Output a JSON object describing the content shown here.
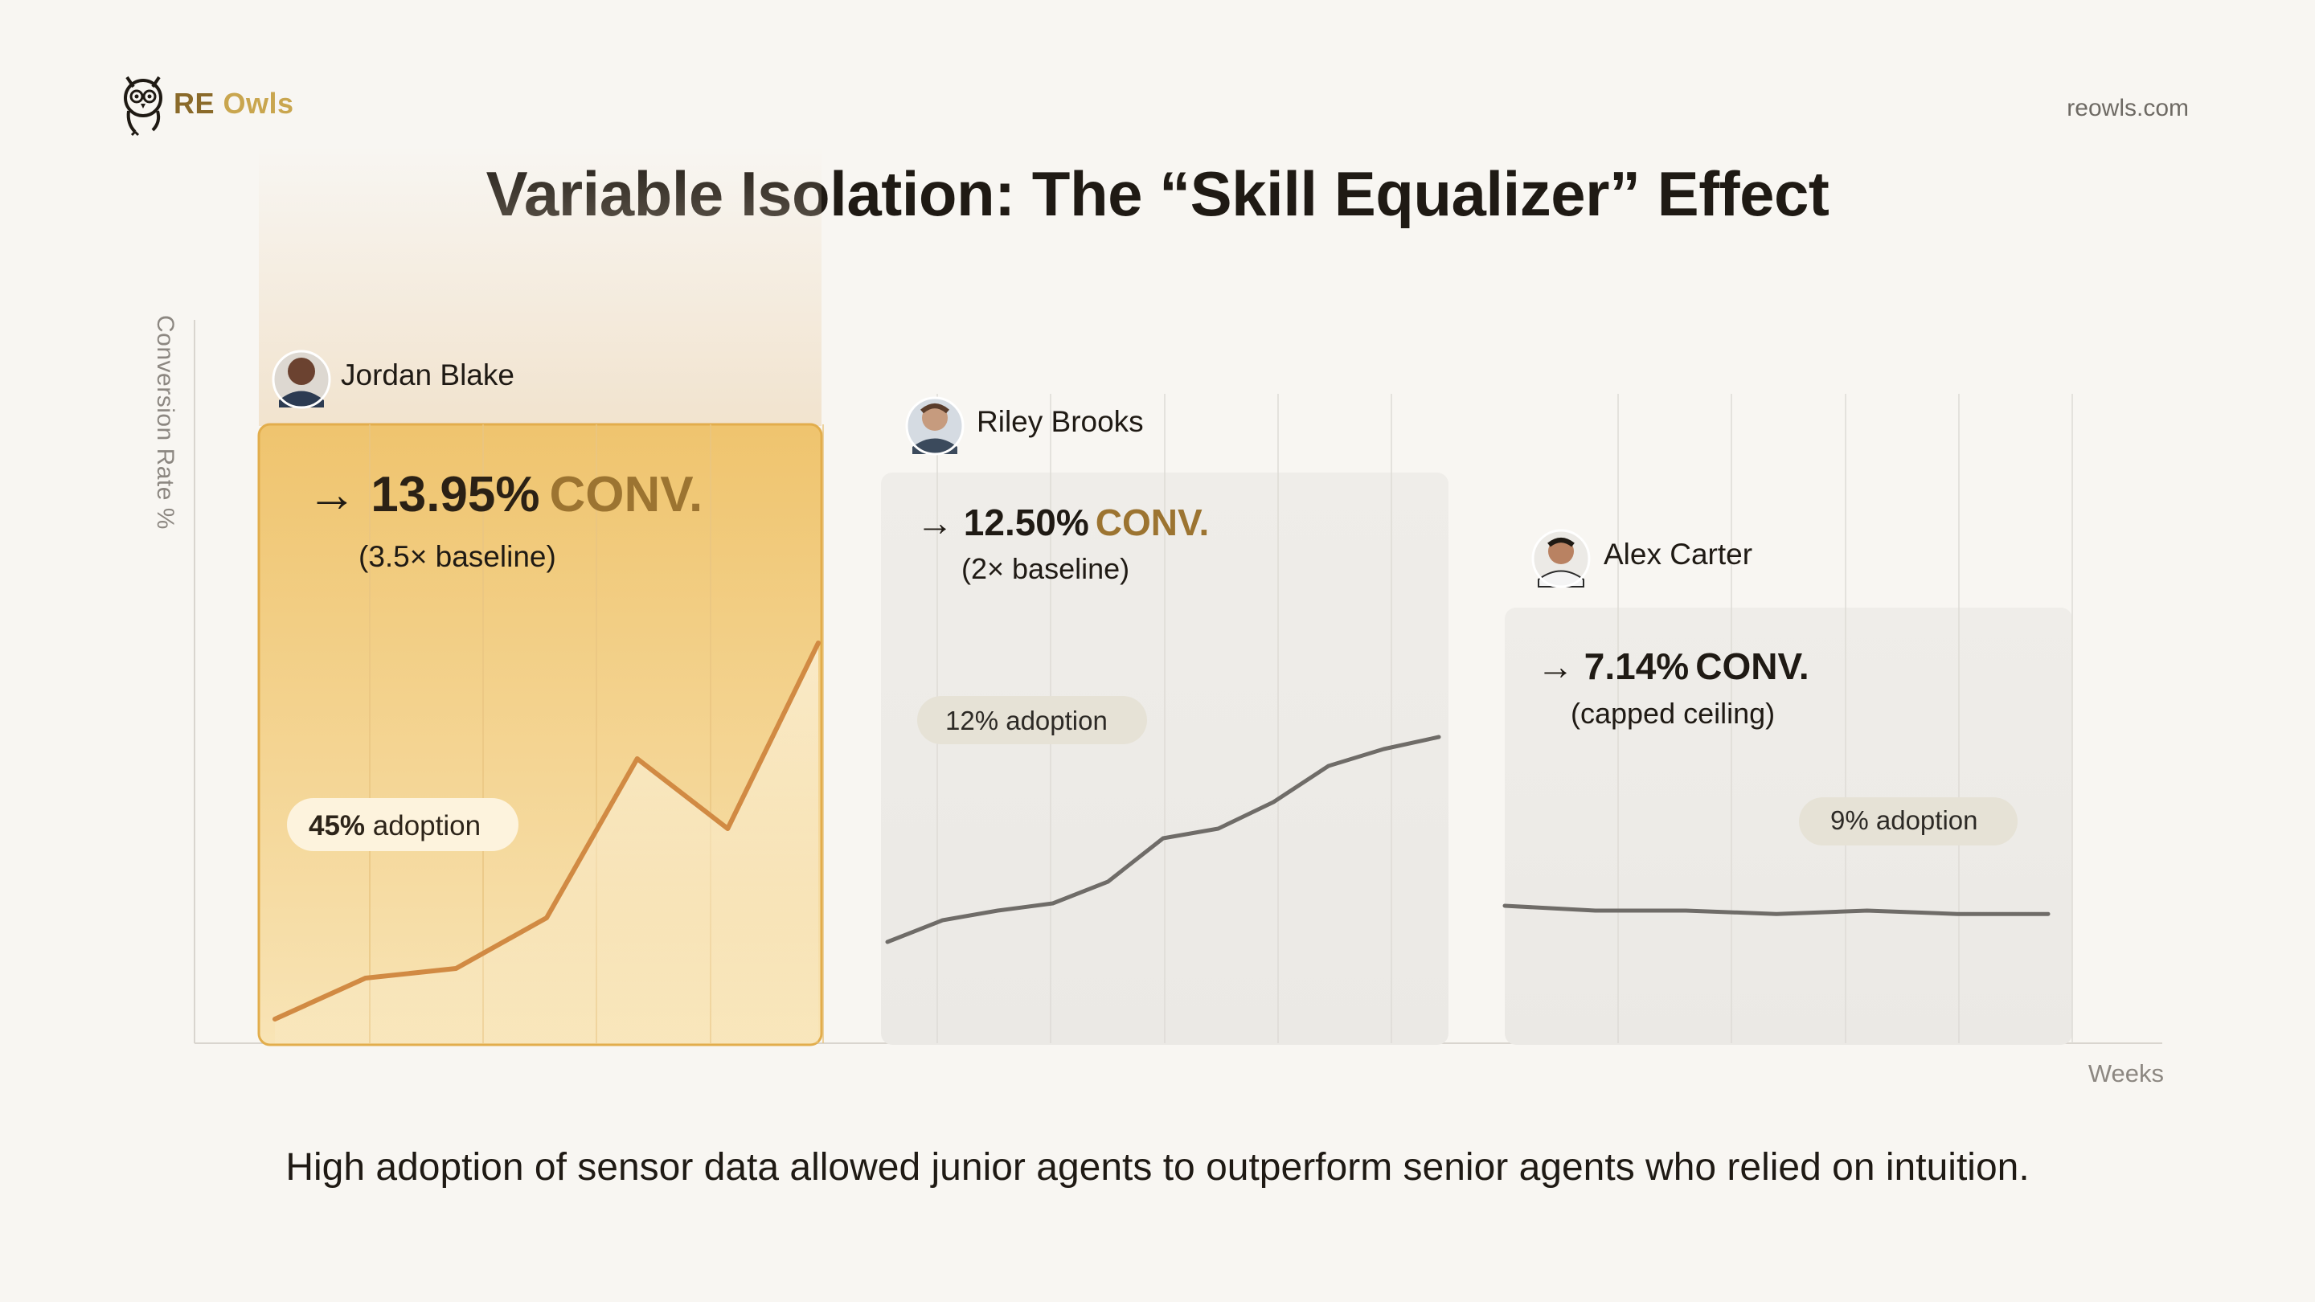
{
  "brand": {
    "name_re": "RE",
    "name_owls": " Owls",
    "logo_icon": "owl-icon"
  },
  "site": "reowls.com",
  "title": "Variable Isolation: The “Skill Equalizer” Effect",
  "caption": "High adoption of sensor data allowed junior agents to outperform senior agents who relied on intuition.",
  "colors": {
    "gold": "#e8b551",
    "gold_line": "#d18a43",
    "gray_line": "#6f6c68",
    "panel_gray": "#edebe7",
    "accent_text": "#9c7431"
  },
  "chart_data": {
    "type": "line",
    "title": "Variable Isolation: The “Skill Equalizer” Effect",
    "xlabel": "Weeks",
    "ylabel": "Conversion Rate %",
    "ylim": [
      0,
      15
    ],
    "series": [
      {
        "name": "Jordan Blake",
        "conversion_value": "13.95%",
        "conversion_unit": "CONV.",
        "note": "(3.5× baseline)",
        "adoption_value": "45%",
        "adoption_word": " adoption",
        "x": [
          0,
          1,
          2,
          3,
          4,
          5,
          6
        ],
        "values": [
          0.5,
          1.35,
          1.55,
          2.6,
          5.9,
          4.45,
          8.3
        ]
      },
      {
        "name": "Riley Brooks",
        "conversion_value": "12.50%",
        "conversion_unit": "CONV.",
        "note": "(2× baseline)",
        "adoption_value": "12%",
        "adoption_word": " adoption",
        "x": [
          0,
          0.5,
          1,
          1.5,
          2,
          2.5,
          3,
          3.5,
          4,
          4.5,
          5
        ],
        "values": [
          2.1,
          2.55,
          2.75,
          2.9,
          3.35,
          4.25,
          4.45,
          5.0,
          5.75,
          6.1,
          6.35
        ]
      },
      {
        "name": "Alex Carter",
        "conversion_value": "7.14%",
        "conversion_unit": "CONV.",
        "note": "(capped ceiling)",
        "adoption_value": "9%",
        "adoption_word": " adoption",
        "x": [
          0,
          1,
          2,
          3,
          4,
          5,
          6
        ],
        "values": [
          2.85,
          2.75,
          2.75,
          2.68,
          2.75,
          2.68,
          2.68
        ]
      }
    ]
  }
}
